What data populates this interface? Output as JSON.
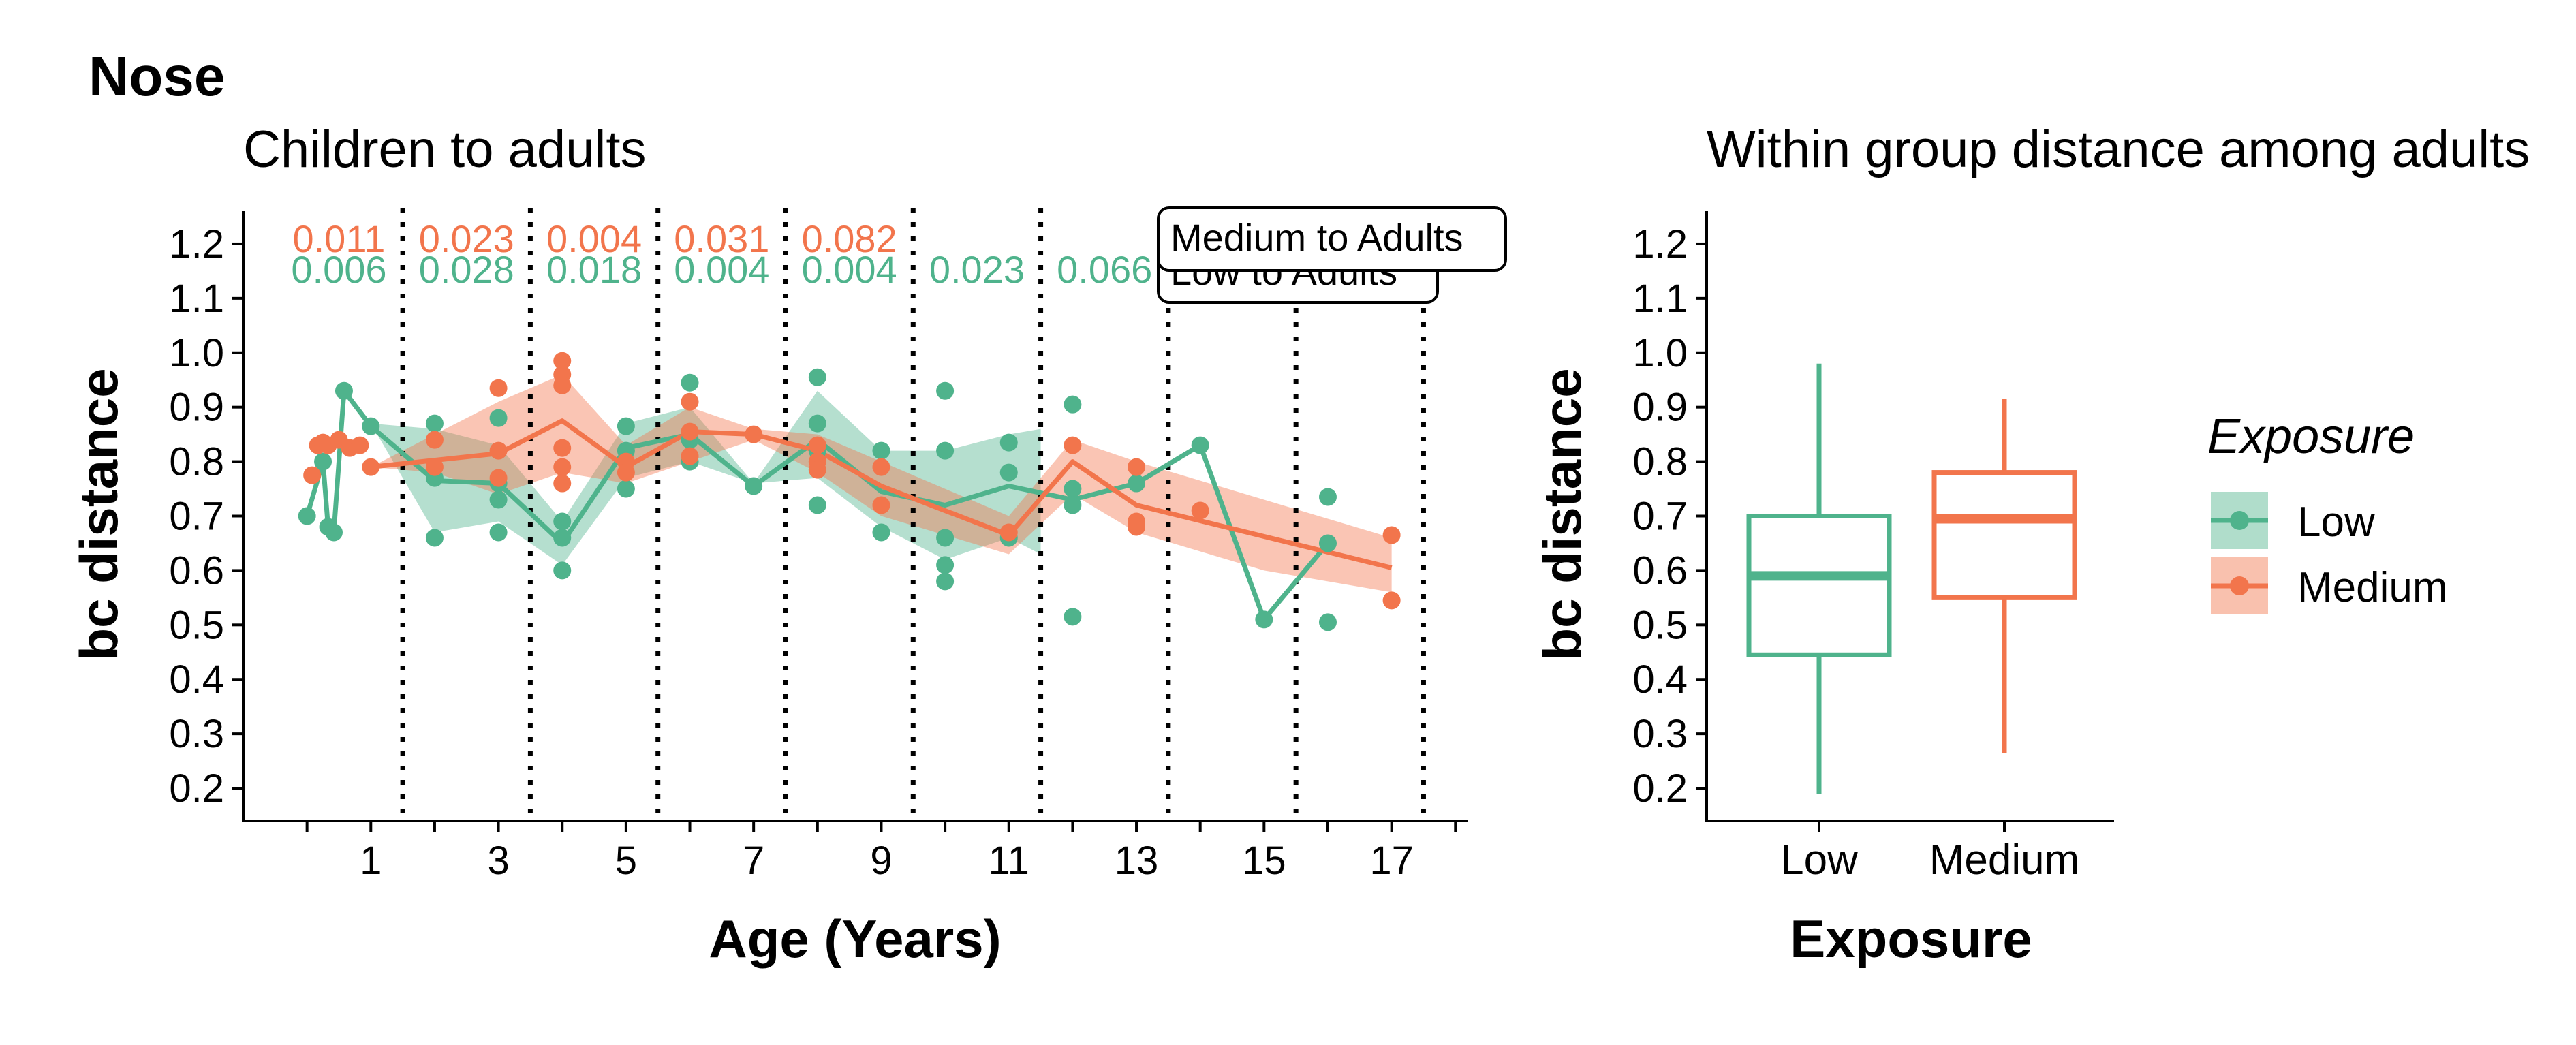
{
  "figure": {
    "title": "Nose"
  },
  "colors": {
    "low": "#4fb38c",
    "medium": "#f2754c",
    "axis": "#000000"
  },
  "legend": {
    "title": "Exposure",
    "items": [
      {
        "label": "Low",
        "color": "#4fb38c"
      },
      {
        "label": "Medium",
        "color": "#f2754c"
      }
    ]
  },
  "chart_data": [
    {
      "type": "scatter",
      "title": "Children to adults",
      "xlabel": "Age (Years)",
      "ylabel": "bc distance",
      "xlim": [
        -1.0,
        18.2
      ],
      "ylim": [
        0.14,
        1.26
      ],
      "xticks": [
        0,
        1,
        2,
        3,
        4,
        5,
        6,
        7,
        8,
        9,
        10,
        11,
        12,
        13,
        14,
        15,
        16,
        17,
        18
      ],
      "xtick_labels": [
        "",
        "1",
        "",
        "3",
        "",
        "5",
        "",
        "7",
        "",
        "9",
        "",
        "11",
        "",
        "13",
        "",
        "15",
        "",
        "17",
        ""
      ],
      "yticks": [
        0.2,
        0.3,
        0.4,
        0.5,
        0.6,
        0.7,
        0.8,
        0.9,
        1.0,
        1.1,
        1.2
      ],
      "ytick_labels": [
        "0.2",
        "0.3",
        "0.4",
        "0.5",
        "0.6",
        "0.7",
        "0.8",
        "0.9",
        "1.0",
        "1.1",
        "1.2"
      ],
      "vlines": [
        1.5,
        3.5,
        5.5,
        7.5,
        9.5,
        11.5,
        13.5,
        15.5,
        17.5
      ],
      "group_pvalues": {
        "medium": [
          {
            "x": 0.5,
            "label": "0.011"
          },
          {
            "x": 2.5,
            "label": "0.023"
          },
          {
            "x": 4.5,
            "label": "0.004"
          },
          {
            "x": 6.5,
            "label": "0.031"
          },
          {
            "x": 8.5,
            "label": "0.082"
          }
        ],
        "low": [
          {
            "x": 0.5,
            "label": "0.006"
          },
          {
            "x": 2.5,
            "label": "0.028"
          },
          {
            "x": 4.5,
            "label": "0.018"
          },
          {
            "x": 6.5,
            "label": "0.004"
          },
          {
            "x": 8.5,
            "label": "0.004"
          },
          {
            "x": 10.5,
            "label": "0.023"
          },
          {
            "x": 12.5,
            "label": "0.066"
          }
        ]
      },
      "annotations": [
        {
          "label": "Medium to Adults",
          "color": "medium"
        },
        {
          "label": "Low to Adults",
          "color": "low"
        }
      ],
      "series": [
        {
          "name": "Low",
          "color_key": "low",
          "points": [
            [
              0.0,
              0.7
            ],
            [
              0.25,
              0.8
            ],
            [
              0.33,
              0.68
            ],
            [
              0.42,
              0.67
            ],
            [
              0.58,
              0.93
            ],
            [
              1.0,
              0.865
            ],
            [
              2.0,
              0.87
            ],
            [
              2.0,
              0.77
            ],
            [
              2.0,
              0.66
            ],
            [
              3.0,
              0.88
            ],
            [
              3.0,
              0.76
            ],
            [
              3.0,
              0.73
            ],
            [
              3.0,
              0.67
            ],
            [
              4.0,
              0.69
            ],
            [
              4.0,
              0.66
            ],
            [
              4.0,
              0.6
            ],
            [
              5.0,
              0.865
            ],
            [
              5.0,
              0.82
            ],
            [
              5.0,
              0.75
            ],
            [
              6.0,
              0.945
            ],
            [
              6.0,
              0.84
            ],
            [
              6.0,
              0.8
            ],
            [
              7.0,
              0.755
            ],
            [
              8.0,
              0.955
            ],
            [
              8.0,
              0.87
            ],
            [
              8.0,
              0.82
            ],
            [
              8.0,
              0.72
            ],
            [
              9.0,
              0.82
            ],
            [
              9.0,
              0.67
            ],
            [
              10.0,
              0.93
            ],
            [
              10.0,
              0.82
            ],
            [
              10.0,
              0.66
            ],
            [
              10.0,
              0.61
            ],
            [
              10.0,
              0.58
            ],
            [
              11.0,
              0.835
            ],
            [
              11.0,
              0.78
            ],
            [
              11.0,
              0.66
            ],
            [
              12.0,
              0.905
            ],
            [
              12.0,
              0.75
            ],
            [
              12.0,
              0.72
            ],
            [
              12.0,
              0.515
            ],
            [
              13.0,
              0.76
            ],
            [
              14.0,
              0.83
            ],
            [
              15.0,
              0.51
            ],
            [
              16.0,
              0.735
            ],
            [
              16.0,
              0.65
            ],
            [
              16.0,
              0.505
            ]
          ],
          "mean_line": [
            [
              0.0,
              0.7
            ],
            [
              0.25,
              0.8
            ],
            [
              0.33,
              0.68
            ],
            [
              0.42,
              0.67
            ],
            [
              0.58,
              0.93
            ],
            [
              1.0,
              0.865
            ],
            [
              2.0,
              0.765
            ],
            [
              3.0,
              0.76
            ],
            [
              4.0,
              0.65
            ],
            [
              5.0,
              0.825
            ],
            [
              6.0,
              0.85
            ],
            [
              7.0,
              0.755
            ],
            [
              8.0,
              0.84
            ],
            [
              9.0,
              0.745
            ],
            [
              10.0,
              0.72
            ],
            [
              11.0,
              0.755
            ],
            [
              12.0,
              0.73
            ],
            [
              13.0,
              0.76
            ],
            [
              14.0,
              0.83
            ],
            [
              15.0,
              0.51
            ],
            [
              16.0,
              0.65
            ]
          ],
          "ribbon": [
            [
              1.0,
              0.87,
              0.87
            ],
            [
              2.0,
              0.67,
              0.86
            ],
            [
              3.0,
              0.69,
              0.83
            ],
            [
              4.0,
              0.61,
              0.69
            ],
            [
              5.0,
              0.77,
              0.87
            ],
            [
              6.0,
              0.8,
              0.9
            ],
            [
              7.0,
              0.76,
              0.76
            ],
            [
              8.0,
              0.77,
              0.93
            ],
            [
              9.0,
              0.68,
              0.82
            ],
            [
              10.0,
              0.62,
              0.82
            ],
            [
              11.0,
              0.66,
              0.85
            ],
            [
              11.5,
              0.63,
              0.86
            ],
            [
              11.5,
              0.63,
              0.86
            ]
          ]
        },
        {
          "name": "Medium",
          "color_key": "medium",
          "points": [
            [
              0.08,
              0.775
            ],
            [
              0.17,
              0.83
            ],
            [
              0.25,
              0.835
            ],
            [
              0.33,
              0.83
            ],
            [
              0.5,
              0.84
            ],
            [
              0.67,
              0.825
            ],
            [
              0.83,
              0.83
            ],
            [
              1.0,
              0.79
            ],
            [
              2.0,
              0.84
            ],
            [
              2.0,
              0.79
            ],
            [
              3.0,
              0.935
            ],
            [
              3.0,
              0.82
            ],
            [
              3.0,
              0.77
            ],
            [
              4.0,
              0.985
            ],
            [
              4.0,
              0.96
            ],
            [
              4.0,
              0.94
            ],
            [
              4.0,
              0.825
            ],
            [
              4.0,
              0.79
            ],
            [
              4.0,
              0.76
            ],
            [
              5.0,
              0.8
            ],
            [
              5.0,
              0.78
            ],
            [
              6.0,
              0.91
            ],
            [
              6.0,
              0.855
            ],
            [
              6.0,
              0.81
            ],
            [
              7.0,
              0.85
            ],
            [
              8.0,
              0.83
            ],
            [
              8.0,
              0.8
            ],
            [
              8.0,
              0.785
            ],
            [
              9.0,
              0.79
            ],
            [
              9.0,
              0.72
            ],
            [
              11.0,
              0.67
            ],
            [
              12.0,
              0.83
            ],
            [
              13.0,
              0.79
            ],
            [
              13.0,
              0.69
            ],
            [
              13.0,
              0.68
            ],
            [
              14.0,
              0.71
            ],
            [
              17.0,
              0.665
            ],
            [
              17.0,
              0.545
            ]
          ],
          "mean_line": [
            [
              1.0,
              0.79
            ],
            [
              3.0,
              0.815
            ],
            [
              4.0,
              0.875
            ],
            [
              5.0,
              0.79
            ],
            [
              6.0,
              0.855
            ],
            [
              7.0,
              0.85
            ],
            [
              8.0,
              0.82
            ],
            [
              9.0,
              0.755
            ],
            [
              11.0,
              0.665
            ],
            [
              12.0,
              0.8
            ],
            [
              13.0,
              0.72
            ],
            [
              17.0,
              0.605
            ]
          ],
          "ribbon": [
            [
              1.0,
              0.79,
              0.79
            ],
            [
              2.0,
              0.78,
              0.85
            ],
            [
              3.0,
              0.74,
              0.91
            ],
            [
              4.0,
              0.78,
              0.96
            ],
            [
              5.0,
              0.76,
              0.83
            ],
            [
              6.0,
              0.8,
              0.9
            ],
            [
              7.0,
              0.84,
              0.86
            ],
            [
              8.0,
              0.78,
              0.85
            ],
            [
              9.0,
              0.7,
              0.8
            ],
            [
              11.0,
              0.63,
              0.7
            ],
            [
              12.0,
              0.74,
              0.84
            ],
            [
              13.0,
              0.67,
              0.8
            ],
            [
              15.0,
              0.6,
              0.73
            ],
            [
              17.0,
              0.56,
              0.66
            ]
          ]
        }
      ]
    },
    {
      "type": "box",
      "title": "Within group distance among adults",
      "xlabel": "Exposure",
      "ylabel": "bc distance",
      "categories": [
        "Low",
        "Medium"
      ],
      "ylim": [
        0.14,
        1.26
      ],
      "yticks": [
        0.2,
        0.3,
        0.4,
        0.5,
        0.6,
        0.7,
        0.8,
        0.9,
        1.0,
        1.1,
        1.2
      ],
      "ytick_labels": [
        "0.2",
        "0.3",
        "0.4",
        "0.5",
        "0.6",
        "0.7",
        "0.8",
        "0.9",
        "1.0",
        "1.1",
        "1.2"
      ],
      "boxes": [
        {
          "name": "Low",
          "color_key": "low",
          "min": 0.19,
          "q1": 0.445,
          "median": 0.59,
          "q3": 0.7,
          "max": 0.98
        },
        {
          "name": "Medium",
          "color_key": "medium",
          "min": 0.265,
          "q1": 0.55,
          "median": 0.695,
          "q3": 0.78,
          "max": 0.915
        }
      ]
    }
  ]
}
